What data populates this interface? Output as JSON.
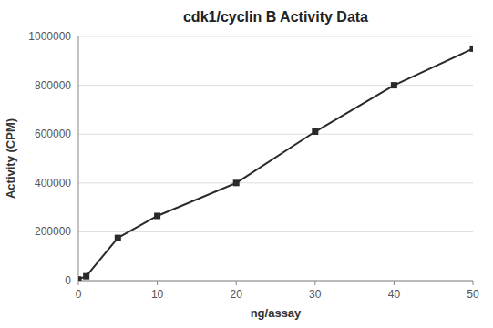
{
  "chart_data": {
    "type": "line",
    "title": "cdk1/cyclin B Activity Data",
    "xlabel": "ng/assay",
    "ylabel": "Activity (CPM)",
    "x": [
      0,
      1,
      5,
      10,
      20,
      30,
      40,
      50
    ],
    "values": [
      5000,
      18000,
      175000,
      265000,
      400000,
      610000,
      800000,
      950000
    ],
    "color": "#2a2a2a",
    "marker": "square",
    "xlim": [
      0,
      50
    ],
    "ylim": [
      0,
      1000000
    ],
    "xticks": [
      0,
      10,
      20,
      30,
      40,
      50
    ],
    "yticks": [
      0,
      200000,
      400000,
      600000,
      800000,
      1000000
    ],
    "grid": true
  }
}
